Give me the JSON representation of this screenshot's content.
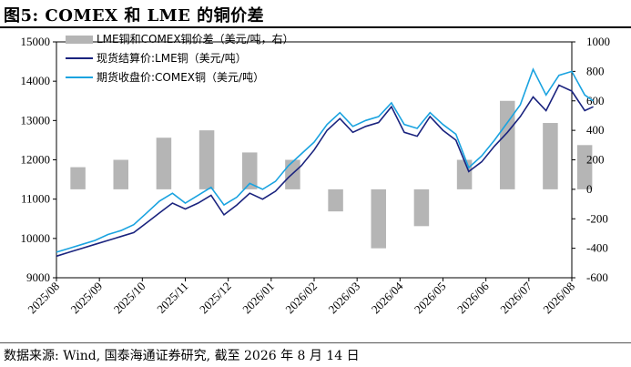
{
  "header": {
    "title": "图5:  COMEX 和 LME 的铜价差"
  },
  "footer": {
    "source": "数据来源:  Wind, 国泰海通证券研究, 截至 2026 年 8 月 14 日"
  },
  "colors": {
    "lme": "#1a237e",
    "comex": "#1aa3e0",
    "spread": "#b5b5b5"
  },
  "chart_data": {
    "type": "line",
    "title": "",
    "xlabel": "",
    "ylabel": "",
    "left_axis": {
      "ylim": [
        9000,
        15000
      ],
      "ticks": [
        9000,
        10000,
        11000,
        12000,
        13000,
        14000,
        15000
      ]
    },
    "right_axis": {
      "ylim": [
        -600,
        1000
      ],
      "ticks": [
        -600,
        -400,
        -200,
        0,
        200,
        400,
        600,
        800,
        1000
      ]
    },
    "x_ticks": [
      "2025/08",
      "2025/09",
      "2025/10",
      "2025/11",
      "2025/12",
      "2026/01",
      "2026/02",
      "2026/03",
      "2026/04",
      "2026/05",
      "2026/06",
      "2026/07",
      "2026/08"
    ],
    "legend_position": "top-left",
    "legend": [
      "LME铜和COMEX铜价差（美元/吨，右）",
      "现货结算价:LME铜（美元/吨）",
      "期货收盘价:COMEX铜（美元/吨）"
    ],
    "series": [
      {
        "name": "现货结算价:LME铜（美元/吨）",
        "type": "line",
        "axis": "left",
        "x": [
          0,
          0.3,
          0.6,
          0.9,
          1.2,
          1.5,
          1.8,
          2.1,
          2.4,
          2.7,
          3.0,
          3.3,
          3.6,
          3.9,
          4.2,
          4.5,
          4.8,
          5.1,
          5.4,
          5.7,
          6.0,
          6.3,
          6.6,
          6.9,
          7.2,
          7.5,
          7.8,
          8.1,
          8.4,
          8.7,
          9.0,
          9.3,
          9.6,
          9.9,
          10.2,
          10.5,
          10.8,
          11.1,
          11.4,
          11.7,
          12.0,
          12.3,
          12.5
        ],
        "values": [
          9550,
          9650,
          9750,
          9850,
          9950,
          10050,
          10150,
          10400,
          10650,
          10900,
          10750,
          10900,
          11100,
          10600,
          10850,
          11150,
          11000,
          11200,
          11550,
          11850,
          12250,
          12750,
          13050,
          12700,
          12850,
          12950,
          13350,
          12700,
          12600,
          13100,
          12750,
          12500,
          11700,
          11950,
          12350,
          12700,
          13100,
          13600,
          13250,
          13900,
          13750,
          13250,
          13350
        ]
      },
      {
        "name": "期货收盘价:COMEX铜（美元/吨）",
        "type": "line",
        "axis": "left",
        "x": [
          0,
          0.3,
          0.6,
          0.9,
          1.2,
          1.5,
          1.8,
          2.1,
          2.4,
          2.7,
          3.0,
          3.3,
          3.6,
          3.9,
          4.2,
          4.5,
          4.8,
          5.1,
          5.4,
          5.7,
          6.0,
          6.3,
          6.6,
          6.9,
          7.2,
          7.5,
          7.8,
          8.1,
          8.4,
          8.7,
          9.0,
          9.3,
          9.6,
          9.9,
          10.2,
          10.5,
          10.8,
          11.1,
          11.4,
          11.7,
          12.0,
          12.3,
          12.5
        ],
        "values": [
          9650,
          9750,
          9850,
          9950,
          10100,
          10200,
          10350,
          10650,
          10950,
          11150,
          10900,
          11100,
          11300,
          10850,
          11050,
          11400,
          11250,
          11450,
          11850,
          12150,
          12450,
          12900,
          13200,
          12850,
          13000,
          13100,
          13450,
          12900,
          12800,
          13200,
          12900,
          12650,
          11800,
          12100,
          12500,
          12950,
          13400,
          14300,
          13650,
          14150,
          14250,
          13650,
          13500
        ]
      },
      {
        "name": "LME铜和COMEX铜价差（美元/吨，右）",
        "type": "bar",
        "axis": "right",
        "x": [
          0.5,
          1.5,
          2.5,
          3.5,
          4.5,
          5.5,
          6.5,
          7.5,
          8.5,
          9.5,
          10.5,
          11.5,
          12.3
        ],
        "values": [
          150,
          200,
          350,
          400,
          250,
          200,
          -150,
          -400,
          -250,
          200,
          600,
          450,
          300
        ]
      }
    ]
  }
}
